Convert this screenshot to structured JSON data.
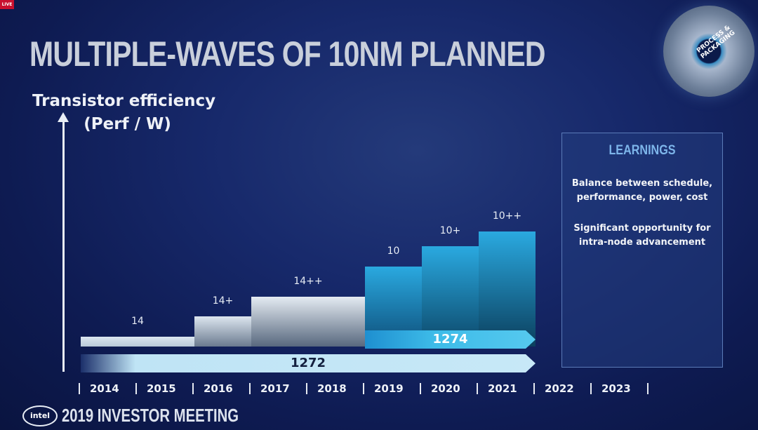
{
  "live_badge": "LIVE",
  "title": "MULTIPLE-WAVES OF 10NM PLANNED",
  "y_axis": {
    "line1": "Transistor efficiency",
    "line2": "(Perf / W)"
  },
  "badge_text": "PROCESS & PACKAGING",
  "learnings": {
    "heading": "LEARNINGS",
    "p1": "Balance between schedule, performance, power, cost",
    "p2": "Significant opportunity for intra-node advancement"
  },
  "footer": {
    "logo": "intel",
    "text": "2019 INVESTOR MEETING"
  },
  "chart_data": {
    "type": "bar",
    "x": [
      "2014",
      "2015",
      "2016",
      "2017",
      "2018",
      "2019",
      "2020",
      "2021",
      "2022",
      "2023"
    ],
    "nodes": [
      {
        "name": "14",
        "start": "2014",
        "end": "2015",
        "level": 1.0
      },
      {
        "name": "14+",
        "start": "2016",
        "end": "2016",
        "level": 3.0
      },
      {
        "name": "14++",
        "start": "2017",
        "end": "2018",
        "level": 5.0
      },
      {
        "name": "10",
        "start": "2019",
        "end": "2019",
        "level": 8.0
      },
      {
        "name": "10+",
        "start": "2020",
        "end": "2020",
        "level": 10.0
      },
      {
        "name": "10++",
        "start": "2021",
        "end": "2021",
        "level": 11.5
      }
    ],
    "process_arrows": [
      {
        "name": "1272",
        "start": "2014",
        "end": "2021"
      },
      {
        "name": "1274",
        "start": "2019",
        "end": "2021"
      }
    ],
    "ylabel": "Transistor efficiency (Perf / W)"
  }
}
